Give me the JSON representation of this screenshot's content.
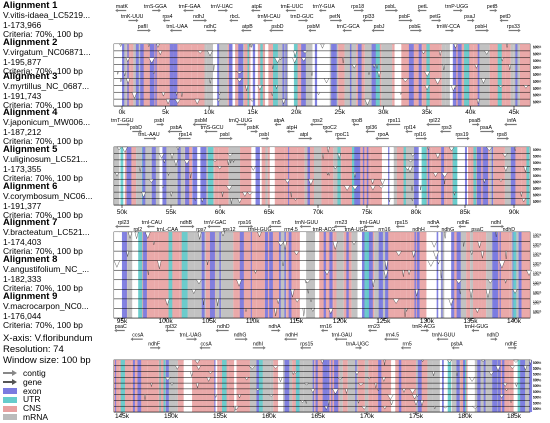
{
  "alignments": [
    {
      "title": "Alignment 1",
      "name": "V.vitis-idaea_LC5219...",
      "range": "1-173,966",
      "criteria": "Criteria: 70%, 100 bp"
    },
    {
      "title": "Alignment 2",
      "name": "V.virgatum_NC06871...",
      "range": "1-195,877",
      "criteria": "Criteria: 70%, 100 bp"
    },
    {
      "title": "Alignment 3",
      "name": "V.myrtillus_NC_0687...",
      "range": "1-191,743",
      "criteria": "Criteria: 70%, 100 bp"
    },
    {
      "title": "Alignment 4",
      "name": "V.japonicum_MW006...",
      "range": "1-187,212",
      "criteria": "Criteria: 70%, 100 bp"
    },
    {
      "title": "Alignment 5",
      "name": "V.uliginosum_LC521...",
      "range": "1-173,355",
      "criteria": "Criteria: 70%, 100 bp"
    },
    {
      "title": "Alignment 6",
      "name": "V.corymbosum_NC06...",
      "range": "1-191,377",
      "criteria": "Criteria: 70%, 100 bp"
    },
    {
      "title": "Alignment 7",
      "name": "V.bracteatum_LC521...",
      "range": "1-174,403",
      "criteria": "Criteria: 70%, 100 bp"
    },
    {
      "title": "Alignment 8",
      "name": "V.angustifolium_NC_...",
      "range": "1-182,333",
      "criteria": "Criteria: 70%, 100 bp"
    },
    {
      "title": "Alignment 9",
      "name": "V.macrocarpon_NC0...",
      "range": "1-176,044",
      "criteria": "Criteria: 70%, 100 bp"
    }
  ],
  "xaxis": {
    "line1": "X-axis: V.floribundum",
    "line2": "Resolution: 74",
    "line3": "Window size: 100 bp"
  },
  "legend": [
    {
      "label": "contig",
      "kind": "arrow",
      "color": "#888888"
    },
    {
      "label": "gene",
      "kind": "arrow",
      "color": "#555555"
    },
    {
      "label": "exon",
      "kind": "box",
      "color": "#7b7be0"
    },
    {
      "label": "UTR",
      "kind": "box",
      "color": "#66cccc"
    },
    {
      "label": "CNS",
      "kind": "box",
      "color": "#e8a0a0"
    },
    {
      "label": "mRNA",
      "kind": "box",
      "color": "#bbbbbb"
    }
  ],
  "colors": {
    "exon": "#7b7be0",
    "utr": "#66cccc",
    "cns": "#e8a0a0",
    "mrna": "#bbbbbb"
  },
  "scale_labels": [
    "100%",
    "50%"
  ],
  "panels": [
    {
      "ticks": [
        "0k",
        "5k",
        "10k",
        "15k",
        "20k",
        "25k",
        "30k",
        "35k",
        "40k",
        "45k"
      ],
      "genes_top": [
        "matK",
        "trnK-UUU",
        "rps16",
        "psbA",
        "psbI",
        "psbK",
        "trnQ-UUG",
        "trnS-GCU",
        "trnR-UCU",
        "atpA",
        "atpF",
        "atpH",
        "atpI",
        "rps2",
        "rpoC2",
        "rpoC1"
      ],
      "genes_row1": [
        "matK",
        "trnK-UUU",
        "pafII",
        "trnS-GGA",
        "rps4",
        "trnL-UAA",
        "trnF-GAA",
        "ndhJ",
        "ndhC",
        "trnV-UAC",
        "rbcL",
        "atpB",
        "atpE",
        "trnM-CAU",
        "psbD",
        "trnE-UUC",
        "trnD-GUC",
        "psbM",
        "trnY-GUA",
        "petN",
        "trnC-GCA",
        "rps18",
        "rpl33",
        "psbJ",
        "psbL",
        "psbF",
        "psbE",
        "petL",
        "petG",
        "trnW-CCA",
        "trnP-UGG",
        "psaJ",
        "psbH",
        "petB",
        "petD",
        "rps33"
      ],
      "row2_labels": [
        "trnS-GGA",
        "rps4",
        "trnL-UAA",
        "ndhC",
        "trnV-UAC",
        "rbcL",
        "trnM-CAU",
        "psbD",
        "trnE-UUC",
        "petN",
        "rpl33",
        "psbH",
        "psbB",
        "psbT",
        "petD",
        "petB"
      ]
    },
    {
      "ticks": [
        "50k",
        "55k",
        "60k",
        "65k",
        "70k",
        "75k",
        "80k",
        "85k",
        "90k"
      ],
      "genes_row1": [
        "trnT-GGU",
        "psbD",
        "trnL-AAU",
        "psbI",
        "psbA",
        "rps14",
        "psbM",
        "trnS-GCU",
        "psbI",
        "trnQ-UUG",
        "psbK",
        "psbI",
        "atpA",
        "atpH",
        "atpI",
        "rps2",
        "rpoC2",
        "rpoC1",
        "rpoB",
        "rpl36",
        "rpoA",
        "rps11",
        "rpl14",
        "rpl16",
        "rpl22",
        "rps3",
        "rps19",
        "psaB",
        "psaA",
        "rps8",
        "infA"
      ]
    },
    {
      "ticks": [
        "95k",
        "100k",
        "105k",
        "110k",
        "115k",
        "120k",
        "125k",
        "130k",
        "135k",
        "140k"
      ],
      "genes_row1": [
        "rpl23",
        "rpl2",
        "trnI-CAU",
        "trnL-CAA",
        "ndhB",
        "rps7",
        "trnV-GAC",
        "rps12",
        "rps16",
        "trnH-GUG",
        "rrn5",
        "rrn4.5",
        "trnN-GUU",
        "trnR-ACG",
        "rrn23",
        "trnA-UGC",
        "trnI-GAU",
        "rrn16",
        "rps15",
        "ndhH",
        "ndhA",
        "ndhG",
        "ndhE",
        "psaC",
        "ndhI",
        "ndhD"
      ]
    },
    {
      "ticks": [
        "145k",
        "150k",
        "155k",
        "160k",
        "165k",
        "170k",
        "175k",
        "180k",
        "185k"
      ],
      "genes_row1": [
        "psaC",
        "ccsA",
        "ndhF",
        "rpl32",
        "trnL-UAG",
        "ccsA",
        "ndhD",
        "ndhG",
        "ndhI",
        "ndhA",
        "ndhH",
        "rps15",
        "rrn16",
        "trnI-GAU",
        "trnA-UGC",
        "rrn23",
        "rrn4.5",
        "rrn5",
        "trnR-ACG",
        "trnN-GUU",
        "psbA",
        "trnH-GUG",
        "ndhD",
        "ndhE"
      ]
    }
  ]
}
